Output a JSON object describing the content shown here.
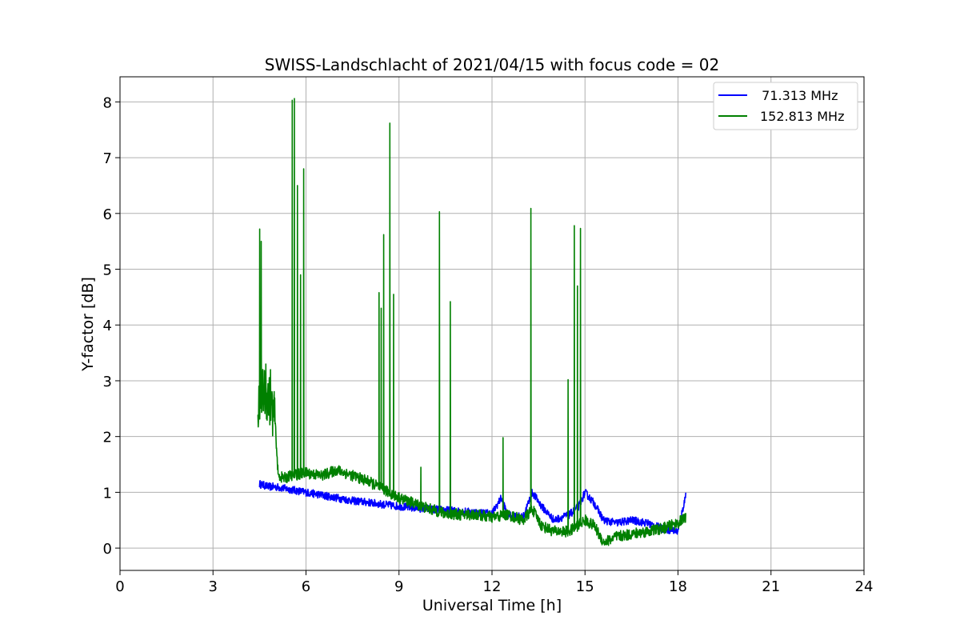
{
  "chart_data": {
    "type": "line",
    "title": "SWISS-Landschlacht of 2021/04/15 with focus code = 02",
    "xlabel": "Universal Time [h]",
    "ylabel": "Y-factor [dB]",
    "xlim": [
      0,
      24
    ],
    "ylim": [
      -0.4,
      8.45
    ],
    "xticks": [
      0,
      3,
      6,
      9,
      12,
      15,
      18,
      21,
      24
    ],
    "yticks": [
      0,
      1,
      2,
      3,
      4,
      5,
      6,
      7,
      8
    ],
    "xtick_labels": [
      "0",
      "3",
      "6",
      "9",
      "12",
      "15",
      "18",
      "21",
      "24"
    ],
    "ytick_labels": [
      "0",
      "1",
      "2",
      "3",
      "4",
      "5",
      "6",
      "7",
      "8"
    ],
    "grid": true,
    "legend_position": "top-right",
    "series": [
      {
        "name": "  71.313 MHz",
        "color": "#0000ff",
        "x": [
          4.5,
          4.8,
          5.0,
          5.5,
          6.0,
          6.5,
          7.0,
          7.5,
          8.0,
          8.5,
          9.0,
          9.5,
          10.0,
          10.5,
          11.0,
          11.5,
          12.0,
          12.3,
          12.5,
          13.0,
          13.3,
          13.6,
          14.0,
          14.5,
          14.8,
          15.0,
          15.3,
          15.6,
          16.0,
          16.5,
          17.0,
          17.5,
          18.0,
          18.25
        ],
        "y": [
          1.15,
          1.1,
          1.1,
          1.05,
          1.0,
          0.95,
          0.9,
          0.85,
          0.82,
          0.78,
          0.75,
          0.72,
          0.7,
          0.68,
          0.66,
          0.64,
          0.62,
          0.9,
          0.6,
          0.55,
          1.0,
          0.75,
          0.5,
          0.6,
          0.75,
          1.0,
          0.8,
          0.5,
          0.45,
          0.5,
          0.45,
          0.35,
          0.3,
          0.95
        ],
        "noise": 0.07
      },
      {
        "name": "152.813 MHz",
        "color": "#008000",
        "x": [
          4.45,
          4.6,
          4.8,
          5.0,
          5.1,
          5.3,
          5.5,
          6.0,
          6.5,
          7.0,
          7.5,
          8.0,
          8.5,
          9.0,
          9.5,
          10.0,
          10.5,
          11.0,
          11.5,
          12.0,
          12.5,
          13.0,
          13.3,
          13.6,
          14.0,
          14.5,
          15.0,
          15.3,
          15.6,
          16.0,
          16.5,
          17.0,
          17.5,
          18.0,
          18.25
        ],
        "y": [
          2.6,
          2.8,
          2.7,
          2.3,
          1.3,
          1.25,
          1.3,
          1.35,
          1.3,
          1.4,
          1.3,
          1.2,
          1.05,
          0.9,
          0.8,
          0.7,
          0.62,
          0.6,
          0.6,
          0.55,
          0.6,
          0.5,
          0.7,
          0.4,
          0.3,
          0.3,
          0.5,
          0.4,
          0.1,
          0.2,
          0.25,
          0.3,
          0.35,
          0.45,
          0.55
        ],
        "noise": 0.1,
        "spikes": [
          [
            4.5,
            5.72
          ],
          [
            4.55,
            5.5
          ],
          [
            4.7,
            3.3
          ],
          [
            4.85,
            3.2
          ],
          [
            5.55,
            8.03
          ],
          [
            5.62,
            8.06
          ],
          [
            5.72,
            6.5
          ],
          [
            5.82,
            4.9
          ],
          [
            5.92,
            6.8
          ],
          [
            8.35,
            4.58
          ],
          [
            8.42,
            4.3
          ],
          [
            8.5,
            5.62
          ],
          [
            8.7,
            7.62
          ],
          [
            8.82,
            4.55
          ],
          [
            9.7,
            1.45
          ],
          [
            10.3,
            6.03
          ],
          [
            10.65,
            4.42
          ],
          [
            12.35,
            1.98
          ],
          [
            13.25,
            6.09
          ],
          [
            14.45,
            3.02
          ],
          [
            14.65,
            5.78
          ],
          [
            14.75,
            4.7
          ],
          [
            14.85,
            5.73
          ]
        ]
      }
    ]
  }
}
